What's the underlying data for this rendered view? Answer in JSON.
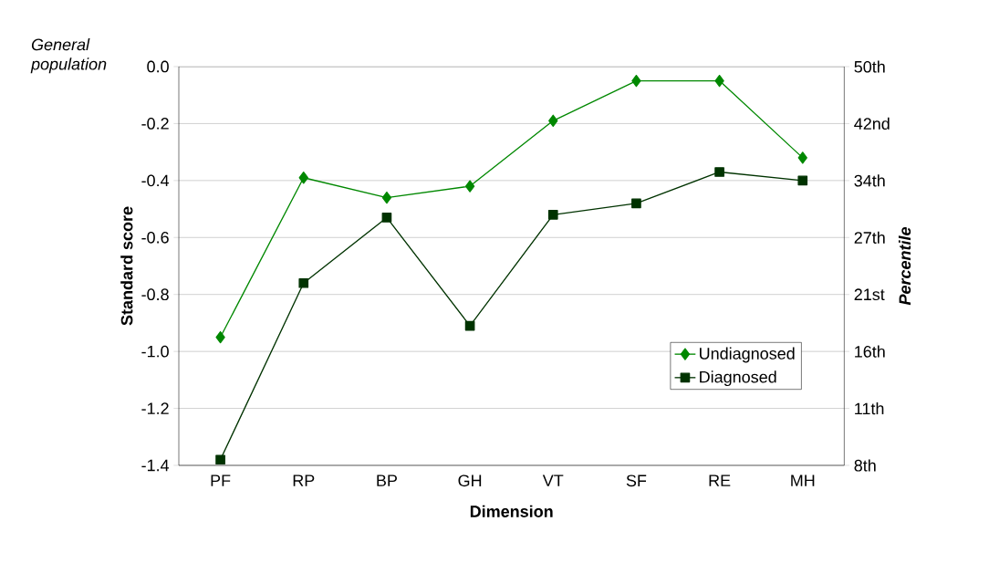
{
  "chart_data": {
    "type": "line",
    "categories": [
      "PF",
      "RP",
      "BP",
      "GH",
      "VT",
      "SF",
      "RE",
      "MH"
    ],
    "series": [
      {
        "name": "Undiagnosed",
        "color": "#008800",
        "marker": "diamond",
        "values": [
          -0.95,
          -0.39,
          -0.46,
          -0.42,
          -0.19,
          -0.05,
          -0.05,
          -0.32
        ]
      },
      {
        "name": "Diagnosed",
        "color": "#003300",
        "marker": "square",
        "values": [
          -1.38,
          -0.76,
          -0.53,
          -0.91,
          -0.52,
          -0.48,
          -0.37,
          -0.4
        ]
      }
    ],
    "xlabel": "Dimension",
    "ylabel": "Standard score",
    "y2label": "Percentile",
    "annotations": [
      "General population"
    ],
    "ylim": [
      -1.4,
      0
    ],
    "yticks": [
      {
        "value": -1.4,
        "label": "-1.4"
      },
      -1.2,
      {
        "value": -1.0,
        "label": "-1.0"
      },
      -0.8,
      -0.6,
      -0.4,
      -0.2,
      {
        "value": 0,
        "label": "0.0"
      }
    ],
    "y2_categories": [
      "50th",
      "42nd",
      "34th",
      "27th",
      "21st",
      "16th",
      "11th",
      "8th"
    ],
    "grid": "y",
    "legend": "right",
    "line_style": "solid"
  }
}
